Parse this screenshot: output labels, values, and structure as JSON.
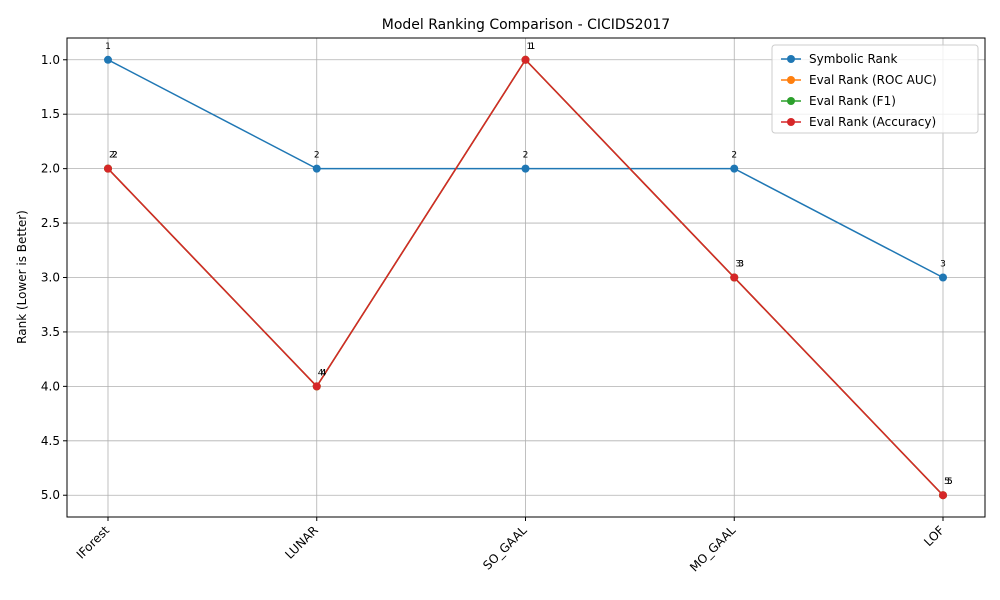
{
  "chart_data": {
    "type": "line",
    "title": "Model Ranking Comparison - CICIDS2017",
    "xlabel": "",
    "ylabel": "Rank (Lower is Better)",
    "categories": [
      "IForest",
      "LUNAR",
      "SO_GAAL",
      "MO_GAAL",
      "LOF"
    ],
    "ylim": [
      5.2,
      0.8
    ],
    "yticks": [
      "1.0",
      "1.5",
      "2.0",
      "2.5",
      "3.0",
      "3.5",
      "4.0",
      "4.5",
      "5.0"
    ],
    "grid": true,
    "legend_position": "top-right",
    "series": [
      {
        "name": "Symbolic Rank",
        "color": "#1f77b4",
        "values": [
          1,
          2,
          2,
          2,
          3
        ],
        "labels": [
          "1",
          "2",
          "2",
          "2",
          "3"
        ]
      },
      {
        "name": "Eval Rank (ROC AUC)",
        "color": "#ff7f0e",
        "values": [
          2,
          4,
          1,
          3,
          5
        ],
        "labels": [
          "2",
          "4",
          "1",
          "3",
          "5"
        ]
      },
      {
        "name": "Eval Rank (F1)",
        "color": "#2ca02c",
        "values": [
          2,
          4,
          1,
          3,
          5
        ],
        "labels": [
          "2",
          "4",
          "1",
          "3",
          "5"
        ]
      },
      {
        "name": "Eval Rank (Accuracy)",
        "color": "#d62728",
        "values": [
          2,
          4,
          1,
          3,
          5
        ],
        "labels": [
          "2",
          "4",
          "1",
          "3",
          "5"
        ]
      }
    ]
  }
}
